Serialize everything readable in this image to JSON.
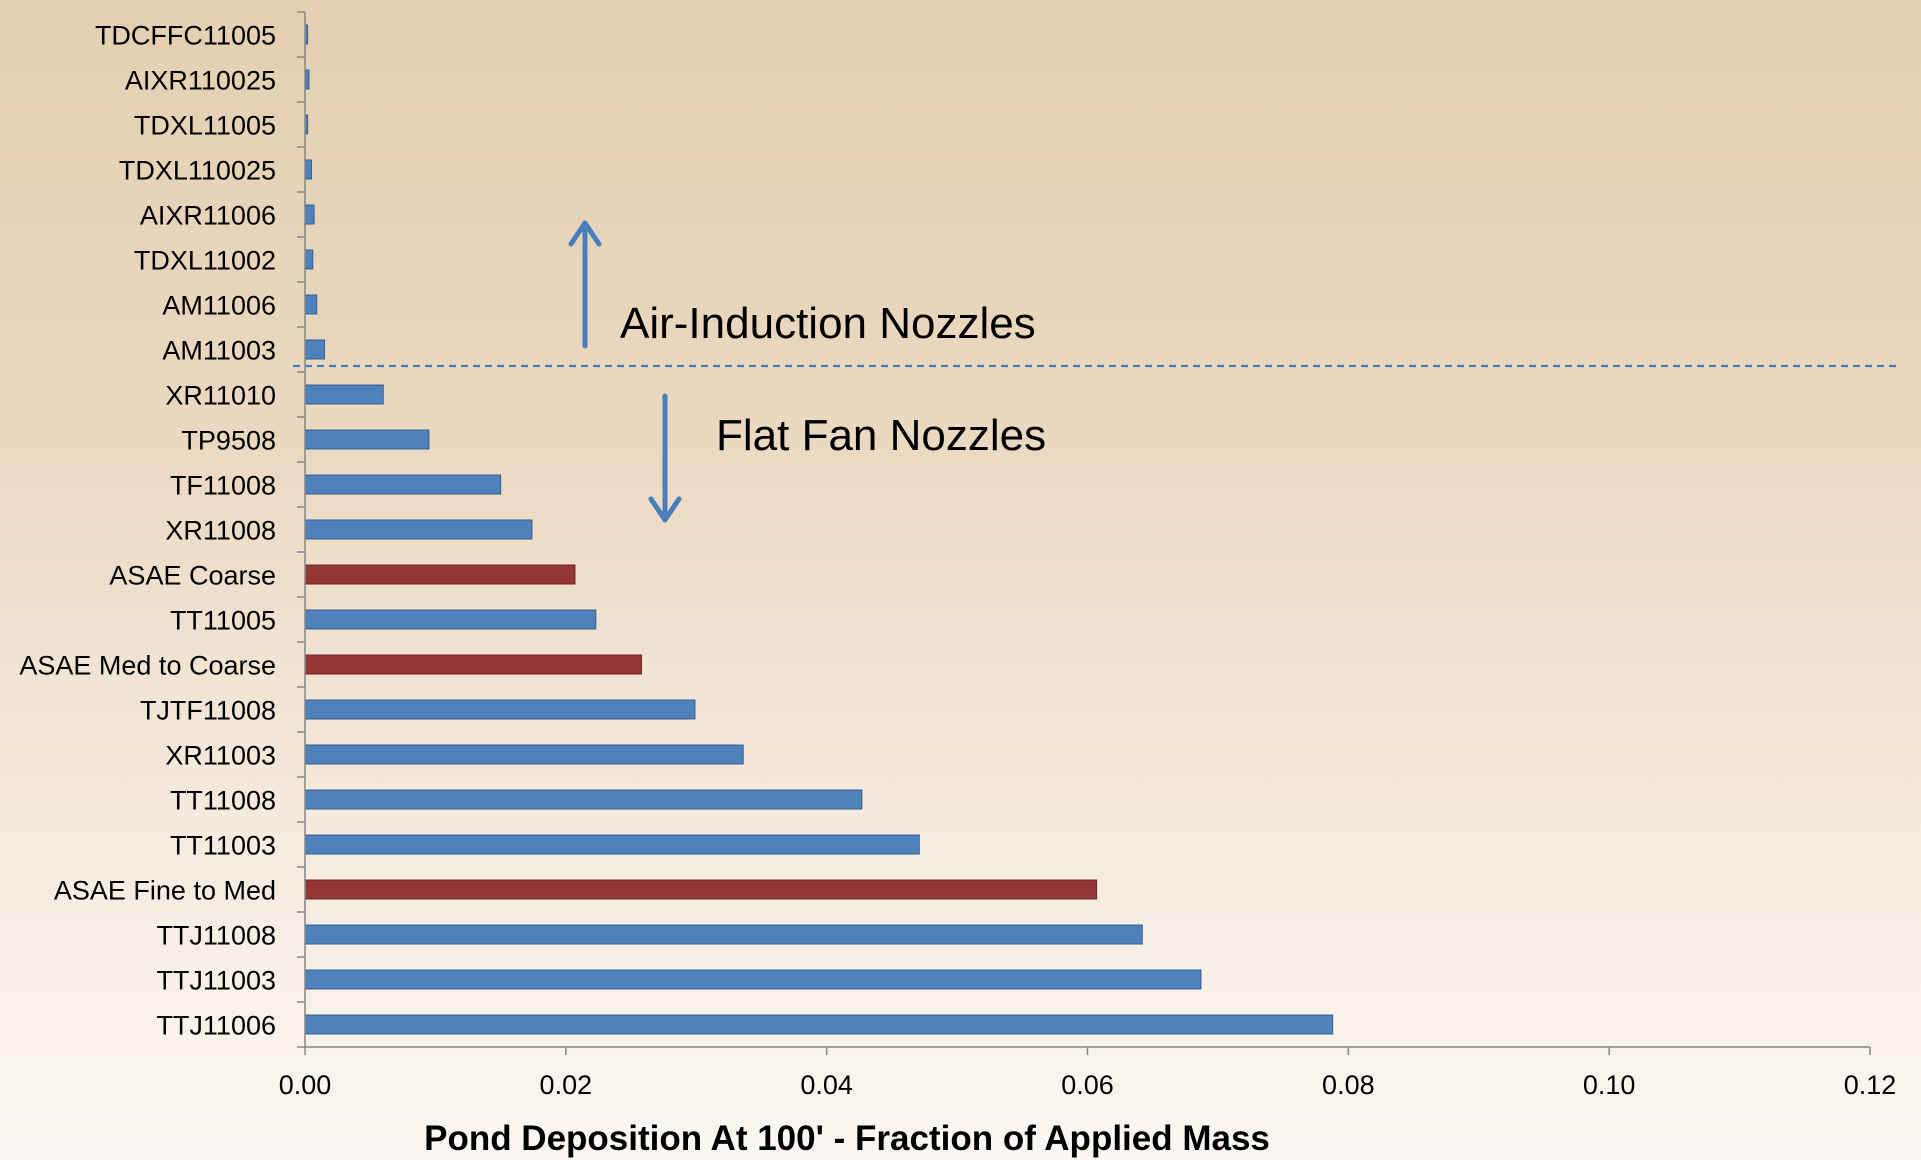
{
  "chart_data": {
    "type": "bar",
    "orientation": "horizontal",
    "xlabel": "Pond Deposition  At 100' - Fraction of Applied Mass",
    "ylabel": "",
    "xlim": [
      0,
      0.12
    ],
    "xticks": [
      "0.00",
      "0.02",
      "0.04",
      "0.06",
      "0.08",
      "0.10",
      "0.12"
    ],
    "grid": false,
    "categories": [
      "TDCFFC11005",
      "AIXR110025",
      "TDXL11005",
      "TDXL110025",
      "AIXR11006",
      "TDXL11002",
      "AM11006",
      "AM11003",
      "XR11010",
      "TP9508",
      "TF11008",
      "XR11008",
      "ASAE Coarse",
      "TT11005",
      "ASAE Med to Coarse",
      "TJTF11008",
      "XR11003",
      "TT11008",
      "TT11003",
      "ASAE Fine to Med",
      "TTJ11008",
      "TTJ11003",
      "TTJ11006"
    ],
    "values": [
      0.0002,
      0.0003,
      0.0002,
      0.0005,
      0.0007,
      0.0006,
      0.0009,
      0.0015,
      0.006,
      0.0095,
      0.015,
      0.0174,
      0.0207,
      0.0223,
      0.0258,
      0.0299,
      0.0336,
      0.0427,
      0.0471,
      0.0607,
      0.0642,
      0.0687,
      0.0788
    ],
    "reference_categories": [
      "ASAE Coarse",
      "ASAE Med to Coarse",
      "ASAE Fine to Med"
    ],
    "colors": {
      "nozzle_bar": "#4f81bd",
      "reference_bar": "#953735",
      "annotation": "#4a7ebb",
      "axis": "#868686"
    },
    "annotations": {
      "air_induction": "Air-Induction Nozzles",
      "flat_fan": "Flat Fan Nozzles"
    }
  }
}
